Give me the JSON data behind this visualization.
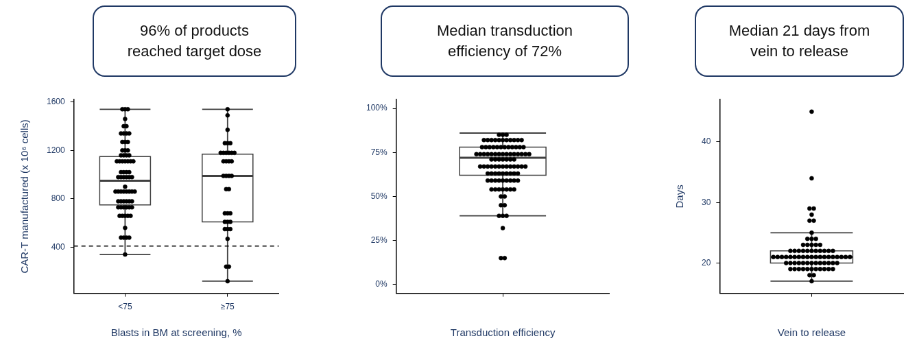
{
  "chart_data": [
    {
      "type": "box",
      "marker": "circle",
      "title": "96% of products reached target dose",
      "xlabel": "Blasts in BM at screening, %",
      "ylabel": "CAR-T manufactured (x 10⁶ cells)",
      "categories": [
        "<75",
        "≥75"
      ],
      "ylim": [
        20,
        1620
      ],
      "yticks": [
        400,
        800,
        1200,
        1600
      ],
      "ref_lines": [
        {
          "axis": "y",
          "value": 410,
          "color": "#000000",
          "line_style": "dashed"
        }
      ],
      "series": [
        {
          "type": "box",
          "color": "#404040",
          "boxes": [
            {
              "low": 340,
              "q1": 750,
              "median": 950,
              "q3": 1150,
              "high": 1540
            },
            {
              "low": 120,
              "q1": 610,
              "median": 990,
              "q3": 1170,
              "high": 1540
            }
          ]
        },
        {
          "type": "scatter",
          "color": "#000000",
          "x": [
            "<75",
            "<75",
            "<75",
            "<75",
            "<75",
            "<75",
            "<75",
            "<75",
            "<75",
            "<75",
            "<75",
            "<75",
            "<75",
            "<75",
            "<75",
            "<75",
            "<75",
            "<75",
            "<75",
            "<75",
            "<75",
            "<75",
            "<75",
            "<75",
            "<75",
            "<75",
            "<75",
            "<75",
            "<75",
            "<75",
            "<75",
            "<75",
            "<75",
            "<75",
            "<75",
            "<75",
            "<75",
            "<75",
            "<75",
            "<75",
            "<75",
            "<75",
            "<75",
            "<75",
            "<75",
            "<75",
            "<75",
            "<75",
            "<75",
            "<75",
            "<75",
            "<75",
            "<75",
            "<75",
            "<75",
            "<75",
            "<75",
            "<75",
            "<75",
            "<75",
            "<75",
            "<75",
            "<75",
            "<75",
            "<75",
            "<75",
            "<75",
            "<75",
            "<75",
            "≥75",
            "≥75",
            "≥75",
            "≥75",
            "≥75",
            "≥75",
            "≥75",
            "≥75",
            "≥75",
            "≥75",
            "≥75",
            "≥75",
            "≥75",
            "≥75",
            "≥75",
            "≥75",
            "≥75",
            "≥75",
            "≥75",
            "≥75",
            "≥75",
            "≥75",
            "≥75",
            "≥75",
            "≥75",
            "≥75",
            "≥75",
            "≥75",
            "≥75",
            "≥75",
            "≥75",
            "≥75",
            "≥75",
            "≥75",
            "≥75"
          ],
          "values": [
            1540,
            1540,
            1540,
            1460,
            1400,
            1400,
            1340,
            1340,
            1340,
            1340,
            1270,
            1270,
            1270,
            1200,
            1200,
            1200,
            1160,
            1160,
            1160,
            1160,
            1110,
            1110,
            1110,
            1110,
            1110,
            1110,
            1110,
            1020,
            1020,
            1020,
            1020,
            980,
            980,
            980,
            980,
            980,
            980,
            900,
            860,
            860,
            860,
            860,
            860,
            860,
            860,
            860,
            780,
            780,
            780,
            780,
            780,
            780,
            730,
            730,
            730,
            730,
            730,
            730,
            660,
            660,
            660,
            660,
            660,
            560,
            480,
            480,
            480,
            480,
            340,
            1540,
            1490,
            1370,
            1260,
            1260,
            1260,
            1180,
            1180,
            1180,
            1180,
            1180,
            1180,
            1110,
            1110,
            1110,
            1110,
            990,
            990,
            990,
            990,
            880,
            880,
            680,
            680,
            680,
            610,
            610,
            610,
            550,
            550,
            550,
            470,
            240,
            240,
            120
          ]
        }
      ]
    },
    {
      "type": "box",
      "marker": "circle",
      "title": "Median transduction efficiency of 72%",
      "xlabel": "Transduction efficiency",
      "categories": [
        null
      ],
      "ylim": [
        -5,
        105
      ],
      "yticks": [
        {
          "value": 0,
          "label": "0%"
        },
        {
          "value": 25,
          "label": "25%"
        },
        {
          "value": 50,
          "label": "50%"
        },
        {
          "value": 75,
          "label": "75%"
        },
        {
          "value": 100,
          "label": "100%"
        }
      ],
      "series": [
        {
          "type": "box",
          "color": "#404040",
          "boxes": [
            {
              "low": 39,
              "q1": 62,
              "median": 72,
              "q3": 78,
              "high": 86
            }
          ]
        },
        {
          "type": "scatter",
          "color": "#000000",
          "x": [
            null,
            null,
            null,
            null,
            null,
            null,
            null,
            null,
            null,
            null,
            null,
            null,
            null,
            null,
            null,
            null,
            null,
            null,
            null,
            null,
            null,
            null,
            null,
            null,
            null,
            null,
            null,
            null,
            null,
            null,
            null,
            null,
            null,
            null,
            null,
            null,
            null,
            null,
            null,
            null,
            null,
            null,
            null,
            null,
            null,
            null,
            null,
            null,
            null,
            null,
            null,
            null,
            null,
            null,
            null,
            null,
            null,
            null,
            null,
            null,
            null,
            null,
            null,
            null,
            null,
            null,
            null,
            null,
            null,
            null,
            null,
            null,
            null,
            null,
            null,
            null,
            null,
            null,
            null,
            null,
            null,
            null,
            null,
            null,
            null,
            null,
            null,
            null,
            null,
            null,
            null,
            null,
            null,
            null,
            null,
            null
          ],
          "values": [
            85,
            85,
            85,
            82,
            82,
            82,
            82,
            82,
            82,
            82,
            82,
            82,
            82,
            82,
            78,
            78,
            78,
            78,
            78,
            78,
            78,
            78,
            78,
            78,
            78,
            78,
            74,
            74,
            74,
            74,
            74,
            74,
            74,
            74,
            74,
            74,
            74,
            74,
            74,
            74,
            74,
            71,
            71,
            71,
            71,
            71,
            71,
            71,
            67,
            67,
            67,
            67,
            67,
            67,
            67,
            67,
            67,
            67,
            67,
            67,
            67,
            63,
            63,
            63,
            63,
            63,
            63,
            63,
            63,
            63,
            59,
            59,
            59,
            59,
            59,
            59,
            59,
            59,
            59,
            54,
            54,
            54,
            54,
            54,
            54,
            54,
            50,
            50,
            45,
            45,
            39,
            39,
            39,
            32,
            15,
            15
          ]
        }
      ]
    },
    {
      "type": "box",
      "marker": "circle",
      "title": "Median 21 days from vein to release",
      "xlabel": "Vein to release",
      "ylabel": "Days",
      "categories": [
        null
      ],
      "ylim": [
        15,
        47
      ],
      "yticks": [
        20,
        30,
        40
      ],
      "series": [
        {
          "type": "box",
          "color": "#404040",
          "boxes": [
            {
              "low": 17,
              "q1": 20,
              "median": 21,
              "q3": 22,
              "high": 25
            }
          ]
        },
        {
          "type": "scatter",
          "color": "#000000",
          "x": [
            null,
            null,
            null,
            null,
            null,
            null,
            null,
            null,
            null,
            null,
            null,
            null,
            null,
            null,
            null,
            null,
            null,
            null,
            null,
            null,
            null,
            null,
            null,
            null,
            null,
            null,
            null,
            null,
            null,
            null,
            null,
            null,
            null,
            null,
            null,
            null,
            null,
            null,
            null,
            null,
            null,
            null,
            null,
            null,
            null,
            null,
            null,
            null,
            null,
            null,
            null,
            null,
            null,
            null,
            null,
            null,
            null,
            null,
            null,
            null,
            null,
            null,
            null,
            null,
            null,
            null,
            null,
            null,
            null,
            null,
            null,
            null,
            null
          ],
          "values": [
            45,
            34,
            29,
            29,
            28,
            27,
            27,
            25,
            24,
            24,
            24,
            23,
            23,
            23,
            23,
            23,
            22,
            22,
            22,
            22,
            22,
            22,
            22,
            22,
            22,
            22,
            22,
            21,
            21,
            21,
            21,
            21,
            21,
            21,
            21,
            21,
            21,
            21,
            21,
            21,
            21,
            21,
            21,
            21,
            21,
            21,
            20,
            20,
            20,
            20,
            20,
            20,
            20,
            20,
            20,
            20,
            20,
            20,
            20,
            19,
            19,
            19,
            19,
            19,
            19,
            19,
            19,
            19,
            19,
            19,
            18,
            18,
            17
          ]
        }
      ]
    }
  ]
}
